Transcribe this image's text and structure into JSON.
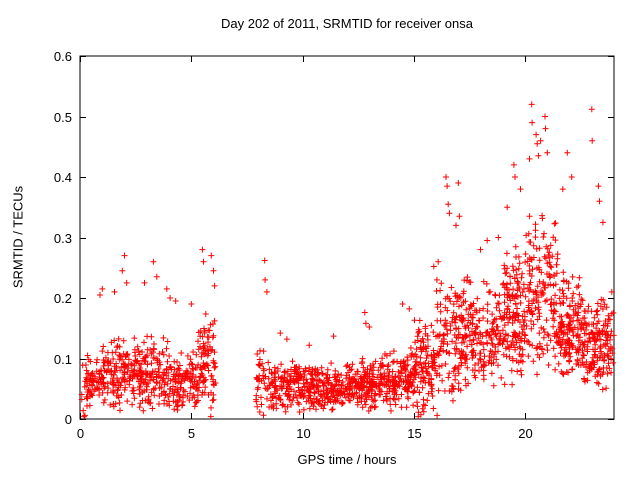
{
  "chart_data": {
    "type": "scatter",
    "title": "Day 202 of 2011, SRMTID for receiver onsa",
    "xlabel": "GPS time / hours",
    "ylabel": "SRMTID / TECUs",
    "xlim": [
      0,
      24
    ],
    "ylim": [
      0,
      0.6
    ],
    "xticks": [
      0,
      5,
      10,
      15,
      20
    ],
    "yticks": [
      0,
      0.1,
      0.2,
      0.3,
      0.4,
      0.5,
      0.6
    ],
    "grid": false,
    "legend": "none",
    "marker": "plus",
    "marker_color": "#ff0000",
    "seed": 20110202,
    "y_floor": 0.003,
    "cluster_fields": [
      "x_start",
      "x_end",
      "count",
      "y_center",
      "y_spread",
      "y_max"
    ],
    "point_clusters": [
      [
        0.05,
        0.35,
        12,
        0.05,
        0.05,
        0.1
      ],
      [
        0.3,
        1.0,
        60,
        0.06,
        0.05,
        0.14
      ],
      [
        1.0,
        2.5,
        150,
        0.075,
        0.065,
        0.2
      ],
      [
        2.5,
        4.0,
        150,
        0.075,
        0.065,
        0.21
      ],
      [
        4.0,
        5.3,
        120,
        0.065,
        0.06,
        0.18
      ],
      [
        5.3,
        6.1,
        90,
        0.09,
        0.09,
        0.25
      ],
      [
        7.9,
        8.6,
        45,
        0.07,
        0.07,
        0.2
      ],
      [
        8.6,
        10.0,
        130,
        0.055,
        0.05,
        0.13
      ],
      [
        10.0,
        12.0,
        200,
        0.05,
        0.045,
        0.12
      ],
      [
        12.0,
        13.5,
        160,
        0.055,
        0.05,
        0.14
      ],
      [
        13.5,
        15.0,
        150,
        0.065,
        0.055,
        0.16
      ],
      [
        15.0,
        16.0,
        120,
        0.085,
        0.085,
        0.24
      ],
      [
        16.0,
        17.5,
        160,
        0.13,
        0.11,
        0.37
      ],
      [
        17.5,
        19.0,
        150,
        0.135,
        0.095,
        0.29
      ],
      [
        19.0,
        20.0,
        150,
        0.17,
        0.12,
        0.4
      ],
      [
        20.0,
        21.5,
        170,
        0.21,
        0.15,
        0.46
      ],
      [
        21.5,
        22.5,
        140,
        0.15,
        0.1,
        0.33
      ],
      [
        22.5,
        24.0,
        175,
        0.125,
        0.085,
        0.26
      ]
    ],
    "outlier_points": [
      [
        0.18,
        0.004
      ],
      [
        0.22,
        0.006
      ],
      [
        0.9,
        0.205
      ],
      [
        1.0,
        0.215
      ],
      [
        1.55,
        0.21
      ],
      [
        1.9,
        0.245
      ],
      [
        2.0,
        0.27
      ],
      [
        2.1,
        0.225
      ],
      [
        2.9,
        0.225
      ],
      [
        3.3,
        0.26
      ],
      [
        3.45,
        0.235
      ],
      [
        3.9,
        0.215
      ],
      [
        4.05,
        0.2
      ],
      [
        4.3,
        0.195
      ],
      [
        5.0,
        0.19
      ],
      [
        5.5,
        0.28
      ],
      [
        5.55,
        0.26
      ],
      [
        5.88,
        0.004
      ],
      [
        5.9,
        0.27
      ],
      [
        6.0,
        0.245
      ],
      [
        6.05,
        0.22
      ],
      [
        8.3,
        0.262
      ],
      [
        8.32,
        0.23
      ],
      [
        8.4,
        0.21
      ],
      [
        9.0,
        0.142
      ],
      [
        9.3,
        0.132
      ],
      [
        10.3,
        0.122
      ],
      [
        11.4,
        0.137
      ],
      [
        12.8,
        0.176
      ],
      [
        12.85,
        0.158
      ],
      [
        13.0,
        0.152
      ],
      [
        14.5,
        0.19
      ],
      [
        14.8,
        0.182
      ],
      [
        15.2,
        0.004
      ],
      [
        15.45,
        0.012
      ],
      [
        15.9,
        0.252
      ],
      [
        16.05,
        0.006
      ],
      [
        16.1,
        0.26
      ],
      [
        16.45,
        0.4
      ],
      [
        16.5,
        0.385
      ],
      [
        16.55,
        0.355
      ],
      [
        16.6,
        0.34
      ],
      [
        16.9,
        0.32
      ],
      [
        17.0,
        0.39
      ],
      [
        17.05,
        0.335
      ],
      [
        18.0,
        0.28
      ],
      [
        18.3,
        0.295
      ],
      [
        18.8,
        0.3
      ],
      [
        19.2,
        0.35
      ],
      [
        19.5,
        0.42
      ],
      [
        19.55,
        0.4
      ],
      [
        19.8,
        0.38
      ],
      [
        20.2,
        0.43
      ],
      [
        20.3,
        0.52
      ],
      [
        20.32,
        0.49
      ],
      [
        20.5,
        0.47
      ],
      [
        20.55,
        0.455
      ],
      [
        20.6,
        0.435
      ],
      [
        20.7,
        0.46
      ],
      [
        20.9,
        0.5
      ],
      [
        20.92,
        0.48
      ],
      [
        21.0,
        0.44
      ],
      [
        21.7,
        0.38
      ],
      [
        21.9,
        0.44
      ],
      [
        22.1,
        0.4
      ],
      [
        23.0,
        0.512
      ],
      [
        23.02,
        0.46
      ],
      [
        23.3,
        0.385
      ],
      [
        23.35,
        0.36
      ],
      [
        23.5,
        0.325
      ],
      [
        23.9,
        0.21
      ]
    ]
  }
}
